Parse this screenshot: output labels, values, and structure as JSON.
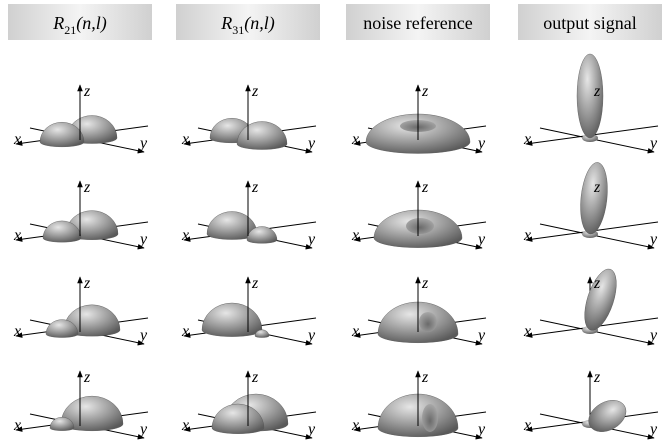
{
  "headers": [
    {
      "base": "R",
      "sub": "21",
      "args": "(n,l)"
    },
    {
      "base": "R",
      "sub": "31",
      "args": "(n,l)"
    },
    {
      "text": "noise reference"
    },
    {
      "text": "output signal"
    }
  ],
  "axis_labels": {
    "x": "x",
    "y": "y",
    "z": "z"
  }
}
